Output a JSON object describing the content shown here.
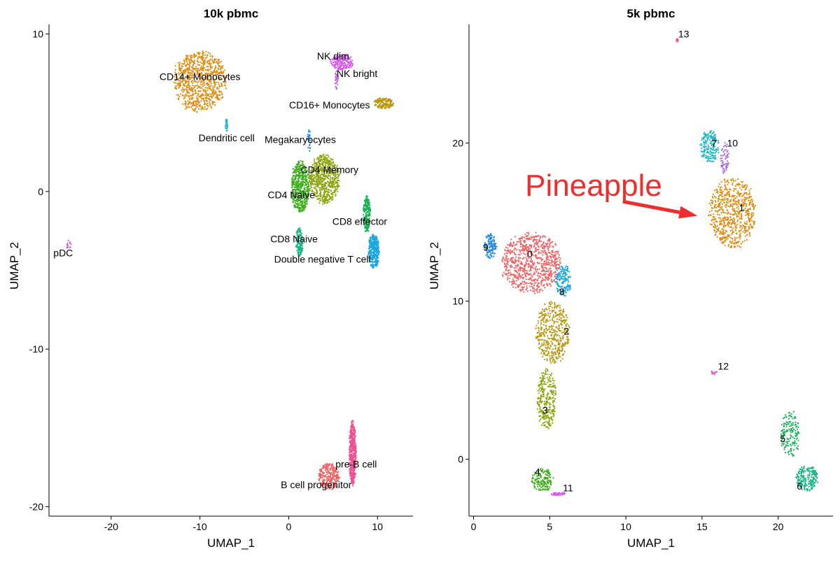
{
  "chart_data": [
    {
      "type": "scatter",
      "title": "10k pbmc",
      "xlabel": "UMAP_1",
      "ylabel": "UMAP_2",
      "xlim": [
        -27,
        14
      ],
      "ylim": [
        -20.6,
        10.6
      ],
      "xticks": [
        -20,
        -10,
        0,
        10
      ],
      "yticks": [
        -20,
        -10,
        0,
        10
      ],
      "grid": false,
      "legend": "none",
      "clusters": [
        {
          "name": "CD14+ Monocytes",
          "color": "#E08A0B",
          "cx": -10,
          "cy": 7,
          "rx": 2.9,
          "ry": 1.9,
          "n": 800,
          "label_x": -10,
          "label_y": 7.3
        },
        {
          "name": "Dendritic cell",
          "color": "#29B5C7",
          "cx": -7,
          "cy": 4.2,
          "rx": 0.15,
          "ry": 0.45,
          "n": 30,
          "label_x": -7,
          "label_y": 3.4
        },
        {
          "name": "NK dim",
          "color": "#D653F2",
          "cx": 6,
          "cy": 8.2,
          "rx": 1.3,
          "ry": 0.5,
          "n": 180,
          "label_x": 5,
          "label_y": 8.6
        },
        {
          "name": "NK bright",
          "color": "#C05BE8",
          "cx": 5.4,
          "cy": 7.1,
          "rx": 0.2,
          "ry": 0.6,
          "n": 30,
          "label_x": 7.7,
          "label_y": 7.5
        },
        {
          "name": "CD16+ Monocytes",
          "color": "#B8960E",
          "cx": 10.7,
          "cy": 5.6,
          "rx": 1.1,
          "ry": 0.35,
          "n": 150,
          "label_x": 4.6,
          "label_y": 5.5
        },
        {
          "name": "Megakaryocytes",
          "color": "#1E88E5",
          "cx": 2.3,
          "cy": 3.2,
          "rx": 0.2,
          "ry": 0.7,
          "n": 25,
          "label_x": 1.3,
          "label_y": 3.3
        },
        {
          "name": "CD4 Memory",
          "color": "#8FA30C",
          "cx": 4,
          "cy": 0.8,
          "rx": 1.7,
          "ry": 1.5,
          "n": 650,
          "label_x": 4.6,
          "label_y": 1.4
        },
        {
          "name": "CD4 Naive",
          "color": "#3AAE18",
          "cx": 1.3,
          "cy": 0.3,
          "rx": 1.0,
          "ry": 1.6,
          "n": 500,
          "label_x": 0.3,
          "label_y": -0.2
        },
        {
          "name": "CD8 effector",
          "color": "#17B356",
          "cx": 8.8,
          "cy": -1.4,
          "rx": 0.4,
          "ry": 1.2,
          "n": 200,
          "label_x": 8,
          "label_y": -1.9
        },
        {
          "name": "CD8 Naive",
          "color": "#1BB384",
          "cx": 1.2,
          "cy": -3.2,
          "rx": 0.4,
          "ry": 0.9,
          "n": 140,
          "label_x": 0.6,
          "label_y": -3.0
        },
        {
          "name": "Double negative T cell",
          "color": "#1BA7E0",
          "cx": 9.6,
          "cy": -3.8,
          "rx": 0.6,
          "ry": 1.1,
          "n": 350,
          "label_x": 3.8,
          "label_y": -4.3
        },
        {
          "name": "pDC",
          "color": "#E455C8",
          "cx": -24.8,
          "cy": -3.4,
          "rx": 0.3,
          "ry": 0.3,
          "n": 15,
          "label_x": -25.4,
          "label_y": -3.9
        },
        {
          "name": "pre-B cell",
          "color": "#F0508E",
          "cx": 7.2,
          "cy": -16.6,
          "rx": 0.4,
          "ry": 2.0,
          "n": 450,
          "label_x": 7.6,
          "label_y": -17.3
        },
        {
          "name": "B cell progenitor",
          "color": "#EF6061",
          "cx": 4.5,
          "cy": -18.1,
          "rx": 1.2,
          "ry": 0.8,
          "n": 250,
          "label_x": 3.1,
          "label_y": -18.6
        }
      ]
    },
    {
      "type": "scatter",
      "title": "5k pbmc",
      "xlabel": "UMAP_1",
      "ylabel": "UMAP_2",
      "xlim": [
        -0.3,
        23.6
      ],
      "ylim": [
        -3.6,
        27.5
      ],
      "xticks": [
        0,
        5,
        10,
        15,
        20
      ],
      "yticks": [
        0,
        10,
        20
      ],
      "grid": false,
      "legend": "none",
      "clusters": [
        {
          "name": "0",
          "color": "#F06060",
          "cx": 3.8,
          "cy": 12.4,
          "rx": 1.9,
          "ry": 1.9,
          "n": 800,
          "label_x": 3.7,
          "label_y": 13
        },
        {
          "name": "1",
          "color": "#E08A0B",
          "cx": 17,
          "cy": 15.6,
          "rx": 1.5,
          "ry": 2.2,
          "n": 650,
          "label_x": 17.6,
          "label_y": 15.9
        },
        {
          "name": "2",
          "color": "#B8960E",
          "cx": 5.2,
          "cy": 8,
          "rx": 1.1,
          "ry": 1.9,
          "n": 450,
          "label_x": 6.1,
          "label_y": 8.1
        },
        {
          "name": "3",
          "color": "#8FA30C",
          "cx": 4.8,
          "cy": 3.8,
          "rx": 0.6,
          "ry": 1.9,
          "n": 280,
          "label_x": 4.7,
          "label_y": 3.1
        },
        {
          "name": "4",
          "color": "#3AAE18",
          "cx": 4.5,
          "cy": -1.3,
          "rx": 0.7,
          "ry": 0.7,
          "n": 160,
          "label_x": 4.2,
          "label_y": -0.8
        },
        {
          "name": "5",
          "color": "#17B356",
          "cx": 20.8,
          "cy": 1.6,
          "rx": 0.6,
          "ry": 1.5,
          "n": 170,
          "label_x": 20.3,
          "label_y": 1.3
        },
        {
          "name": "6",
          "color": "#1BB384",
          "cx": 21.9,
          "cy": -1.2,
          "rx": 0.7,
          "ry": 0.8,
          "n": 200,
          "label_x": 21.4,
          "label_y": -1.7
        },
        {
          "name": "7",
          "color": "#1BB5C1",
          "cx": 15.5,
          "cy": 19.8,
          "rx": 0.6,
          "ry": 1.0,
          "n": 180,
          "label_x": 15.8,
          "label_y": 20.0
        },
        {
          "name": "8",
          "color": "#1BA7E0",
          "cx": 5.9,
          "cy": 11.3,
          "rx": 0.5,
          "ry": 1.0,
          "n": 150,
          "label_x": 5.8,
          "label_y": 10.6
        },
        {
          "name": "9",
          "color": "#1E88E5",
          "cx": 1.1,
          "cy": 13.5,
          "rx": 0.4,
          "ry": 0.8,
          "n": 120,
          "label_x": 0.8,
          "label_y": 13.4
        },
        {
          "name": "10",
          "color": "#A866EF",
          "cx": 16.5,
          "cy": 19.0,
          "rx": 0.3,
          "ry": 1.0,
          "n": 60,
          "label_x": 17.0,
          "label_y": 20.0
        },
        {
          "name": "11",
          "color": "#D653F2",
          "cx": 5.6,
          "cy": -2.2,
          "rx": 0.5,
          "ry": 0.1,
          "n": 40,
          "label_x": 6.2,
          "label_y": -1.8
        },
        {
          "name": "12",
          "color": "#E455C8",
          "cx": 15.8,
          "cy": 5.5,
          "rx": 0.2,
          "ry": 0.15,
          "n": 15,
          "label_x": 16.4,
          "label_y": 5.9
        },
        {
          "name": "13",
          "color": "#F0508E",
          "cx": 13.4,
          "cy": 26.5,
          "rx": 0.1,
          "ry": 0.1,
          "n": 12,
          "label_x": 13.8,
          "label_y": 26.9
        }
      ],
      "annotation": {
        "text": "Pineapple",
        "arrow_from": [
          9.8,
          16.3
        ],
        "arrow_to": [
          14.7,
          15.4
        ]
      }
    }
  ]
}
